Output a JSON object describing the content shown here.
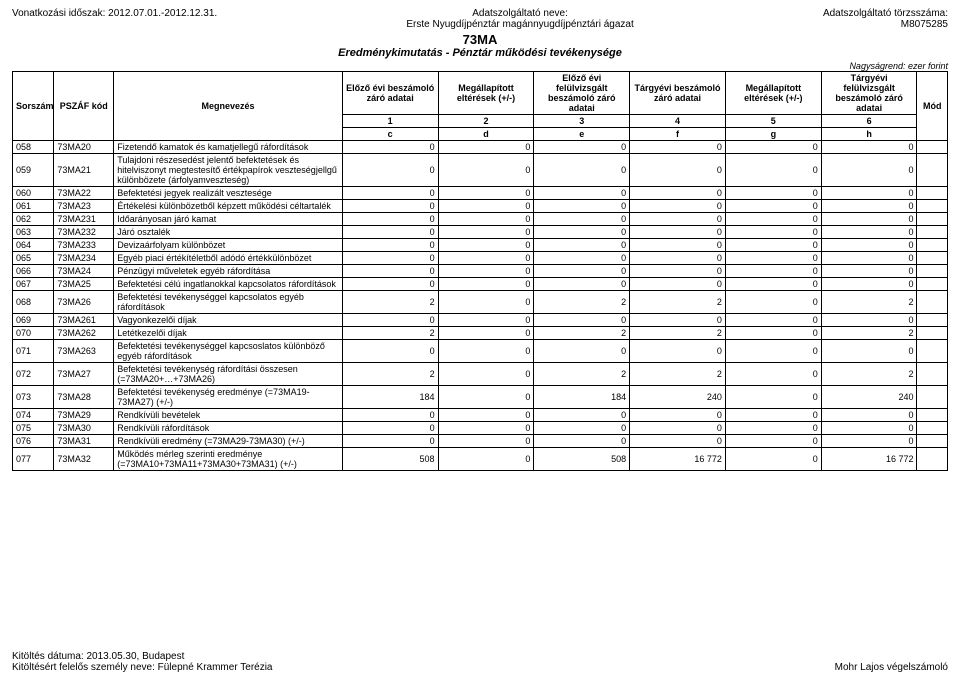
{
  "meta": {
    "period_label": "Vonatkozási időszak:",
    "period_value": "2012.07.01.-2012.12.31.",
    "provider_name_label": "Adatszolgáltató neve:",
    "provider_name": "Erste Nyugdíjpénztár magánnyugdíjpénztári ágazat",
    "provider_id_label": "Adatszolgáltató törzsszáma:",
    "provider_id": "M8075285",
    "form_code": "73MA",
    "form_title": "Eredménykimutatás - Pénztár működési tevékenysége",
    "unit": "Nagyságrend: ezer forint"
  },
  "columns": {
    "sorszam": "Sorszám",
    "pszaf": "PSZÁF kód",
    "megnevezes": "Megnevezés",
    "c1": "Előző évi beszámoló záró adatai",
    "c2": "Megállapított eltérések (+/-)",
    "c3": "Előző évi felülvizsgált beszámoló záró adatai",
    "c4": "Tárgyévi beszámoló záró adatai",
    "c5": "Megállapított eltérések (+/-)",
    "c6": "Tárgyévi felülvizsgált beszámoló záró adatai",
    "mod": "Mód"
  },
  "subhead_nums": {
    "n1": "1",
    "n2": "2",
    "n3": "3",
    "n4": "4",
    "n5": "5",
    "n6": "6",
    "n7": "7"
  },
  "subhead_lets": {
    "l1": "c",
    "l2": "d",
    "l3": "e",
    "l4": "f",
    "l5": "g",
    "l6": "h",
    "l7": "z"
  },
  "rows": [
    {
      "sor": "058",
      "code": "73MA20",
      "desc": "Fizetendő kamatok és kamatjellegű ráfordítások",
      "v": [
        0,
        0,
        0,
        0,
        0,
        0
      ]
    },
    {
      "sor": "059",
      "code": "73MA21",
      "desc": "Tulajdoni részesedést jelentő befektetések és hitelviszonyt megtestesítő értékpapírok veszteségjellgű különbözete (árfolyamveszteség)",
      "v": [
        0,
        0,
        0,
        0,
        0,
        0
      ]
    },
    {
      "sor": "060",
      "code": "73MA22",
      "desc": "Befektetési jegyek realizált vesztesége",
      "v": [
        0,
        0,
        0,
        0,
        0,
        0
      ]
    },
    {
      "sor": "061",
      "code": "73MA23",
      "desc": "Értékelési különbözetből képzett működési céltartalék",
      "v": [
        0,
        0,
        0,
        0,
        0,
        0
      ]
    },
    {
      "sor": "062",
      "code": "73MA231",
      "desc": "Időarányosan járó kamat",
      "v": [
        0,
        0,
        0,
        0,
        0,
        0
      ]
    },
    {
      "sor": "063",
      "code": "73MA232",
      "desc": "Járó osztalék",
      "v": [
        0,
        0,
        0,
        0,
        0,
        0
      ]
    },
    {
      "sor": "064",
      "code": "73MA233",
      "desc": "Devizaárfolyam különbözet",
      "v": [
        0,
        0,
        0,
        0,
        0,
        0
      ]
    },
    {
      "sor": "065",
      "code": "73MA234",
      "desc": "Egyéb piaci értékítéletből adódó értékkülönbözet",
      "v": [
        0,
        0,
        0,
        0,
        0,
        0
      ]
    },
    {
      "sor": "066",
      "code": "73MA24",
      "desc": "Pénzügyi műveletek egyéb ráfordítása",
      "v": [
        0,
        0,
        0,
        0,
        0,
        0
      ]
    },
    {
      "sor": "067",
      "code": "73MA25",
      "desc": "Befektetési célú ingatlanokkal kapcsolatos ráfordítások",
      "v": [
        0,
        0,
        0,
        0,
        0,
        0
      ]
    },
    {
      "sor": "068",
      "code": "73MA26",
      "desc": "Befektetési tevékenységgel kapcsolatos egyéb ráfordítások",
      "v": [
        2,
        0,
        2,
        2,
        0,
        2
      ]
    },
    {
      "sor": "069",
      "code": "73MA261",
      "desc": "Vagyonkezelői díjak",
      "v": [
        0,
        0,
        0,
        0,
        0,
        0
      ]
    },
    {
      "sor": "070",
      "code": "73MA262",
      "desc": "Letétkezelői díjak",
      "v": [
        2,
        0,
        2,
        2,
        0,
        2
      ]
    },
    {
      "sor": "071",
      "code": "73MA263",
      "desc": "Befektetési tevékenységgel kapcsoslatos különböző egyéb ráfordítások",
      "v": [
        0,
        0,
        0,
        0,
        0,
        0
      ]
    },
    {
      "sor": "072",
      "code": "73MA27",
      "desc": "Befektetési tevékenység ráfordítási összesen (=73MA20+…+73MA26)",
      "v": [
        2,
        0,
        2,
        2,
        0,
        2
      ]
    },
    {
      "sor": "073",
      "code": "73MA28",
      "desc": "Befektetési tevékenység eredménye (=73MA19-73MA27) (+/-)",
      "v": [
        184,
        0,
        184,
        240,
        0,
        240
      ]
    },
    {
      "sor": "074",
      "code": "73MA29",
      "desc": "Rendkívüli bevételek",
      "v": [
        0,
        0,
        0,
        0,
        0,
        0
      ]
    },
    {
      "sor": "075",
      "code": "73MA30",
      "desc": "Rendkívüli ráfordítások",
      "v": [
        0,
        0,
        0,
        0,
        0,
        0
      ]
    },
    {
      "sor": "076",
      "code": "73MA31",
      "desc": "Rendkívüli eredmény (=73MA29-73MA30) (+/-)",
      "v": [
        0,
        0,
        0,
        0,
        0,
        0
      ]
    },
    {
      "sor": "077",
      "code": "73MA32",
      "desc": "Működés mérleg szerinti eredménye (=73MA10+73MA11+73MA30+73MA31) (+/-)",
      "v": [
        508,
        0,
        508,
        "16 772",
        0,
        "16 772"
      ]
    }
  ],
  "footer": {
    "date_label": "Kitöltés dátuma:",
    "date_value": "2013.05.30, Budapest",
    "resp_label": "Kitöltésért felelős személy neve:",
    "resp_value": "Fülepné Krammer Terézia",
    "signer": "Mohr Lajos végelszámoló"
  }
}
